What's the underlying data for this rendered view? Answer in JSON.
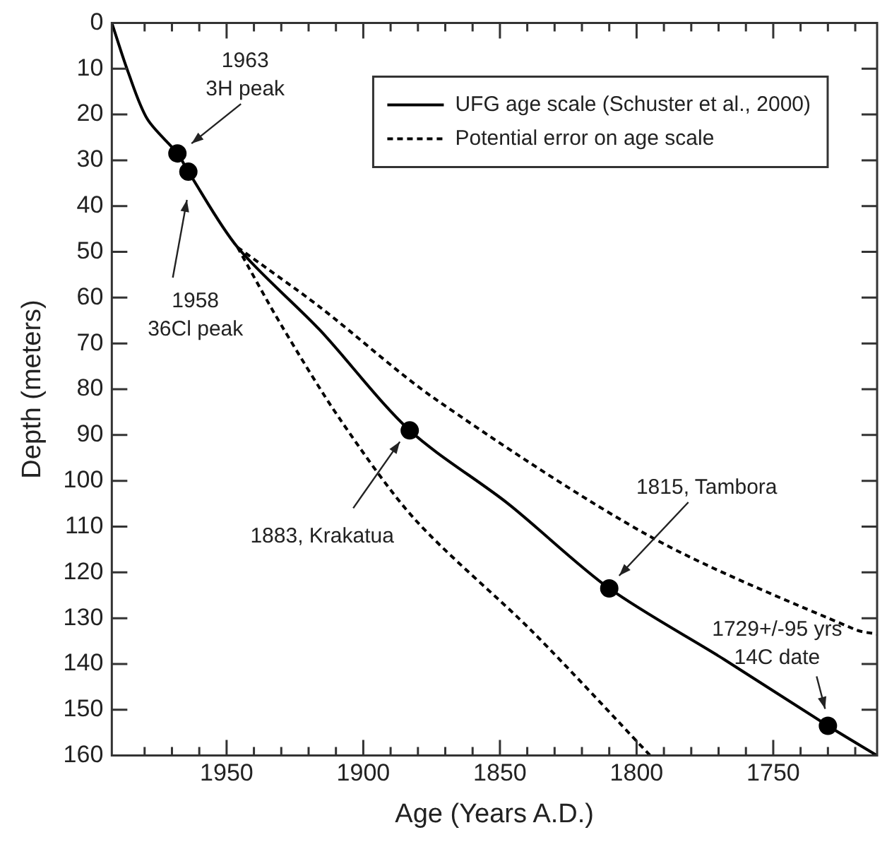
{
  "chart_data": {
    "type": "line",
    "xlabel": "Age (Years A.D.)",
    "ylabel": "Depth (meters)",
    "xlim": [
      1992,
      1712
    ],
    "ylim": [
      160,
      0
    ],
    "xticks": [
      {
        "value": 1980,
        "label": null
      },
      {
        "value": 1970,
        "label": null
      },
      {
        "value": 1960,
        "label": null
      },
      1950,
      {
        "value": 1940,
        "label": null
      },
      {
        "value": 1930,
        "label": null
      },
      {
        "value": 1920,
        "label": null
      },
      {
        "value": 1910,
        "label": null
      },
      1900,
      {
        "value": 1890,
        "label": null
      },
      {
        "value": 1880,
        "label": null
      },
      {
        "value": 1870,
        "label": null
      },
      {
        "value": 1860,
        "label": null
      },
      1850,
      {
        "value": 1840,
        "label": null
      },
      {
        "value": 1830,
        "label": null
      },
      {
        "value": 1820,
        "label": null
      },
      {
        "value": 1810,
        "label": null
      },
      1800,
      {
        "value": 1790,
        "label": null
      },
      {
        "value": 1780,
        "label": null
      },
      {
        "value": 1770,
        "label": null
      },
      {
        "value": 1760,
        "label": null
      },
      1750,
      {
        "value": 1740,
        "label": null
      },
      {
        "value": 1730,
        "label": null
      },
      {
        "value": 1720,
        "label": null
      }
    ],
    "yticks": [
      0,
      10,
      20,
      30,
      40,
      50,
      60,
      70,
      80,
      90,
      100,
      110,
      120,
      130,
      140,
      150,
      160
    ],
    "grid": false,
    "legend": "top right",
    "series": [
      {
        "name": "UFG age scale (Schuster et al., 2000)",
        "color": "#000000",
        "line_style": "solid",
        "marker": "none",
        "x": [
          1992,
          1986,
          1979,
          1968,
          1964,
          1946,
          1916,
          1883,
          1847,
          1810,
          1768,
          1730,
          1712
        ],
        "values": [
          0,
          10.8,
          21,
          28.5,
          32.5,
          49,
          67,
          89,
          105,
          123.5,
          139,
          153.5,
          160
        ]
      },
      {
        "name": "Potential error on age scale",
        "color": "#000000",
        "line_style": "dashed",
        "marker": "none",
        "x": [
          1946,
          1916,
          1874,
          1794,
          1720,
          1712
        ],
        "values": [
          49,
          62,
          82,
          112.5,
          132.5,
          133.5
        ]
      },
      {
        "color": "#000000",
        "line_style": "dashed",
        "marker": "none",
        "x": [
          1946,
          1930,
          1908,
          1881,
          1838,
          1795
        ],
        "values": [
          49,
          66,
          87,
          108.5,
          133,
          160
        ]
      },
      {
        "type": "scatter",
        "color": "#000000",
        "marker": "circle",
        "x": [
          1968,
          1964,
          1883,
          1810,
          1730
        ],
        "values": [
          28.5,
          32.5,
          89,
          123.5,
          153.5
        ]
      }
    ],
    "annotations": [
      "1963\n3H peak",
      "1958\n36Cl peak",
      "1883, Krakatua",
      "1815, Tambora",
      "1729+/-95 yrs\n14C date"
    ]
  }
}
